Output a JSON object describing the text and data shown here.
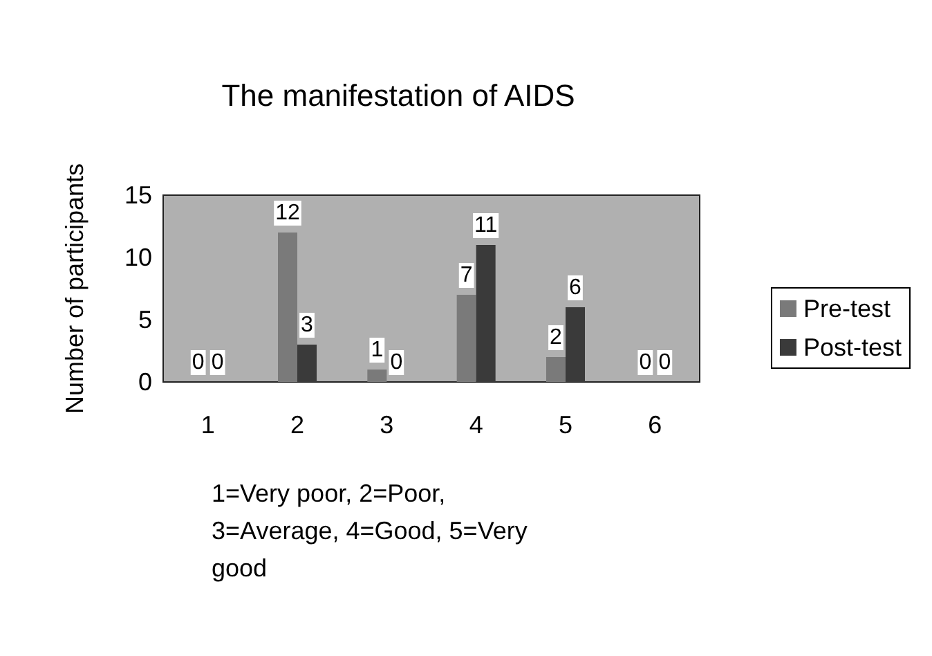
{
  "chart_data": {
    "type": "bar",
    "title": "The manifestation of AIDS",
    "xlabel": "1=Very poor, 2=Poor, 3=Average, 4=Good, 5=Very good",
    "ylabel": "Number of participants",
    "categories": [
      "1",
      "2",
      "3",
      "4",
      "5",
      "6"
    ],
    "series": [
      {
        "name": "Pre-test",
        "color": "#7a7a7a",
        "values": [
          0,
          12,
          1,
          7,
          2,
          0
        ]
      },
      {
        "name": "Post-test",
        "color": "#3a3a3a",
        "values": [
          0,
          3,
          0,
          11,
          6,
          0
        ]
      }
    ],
    "ylim": [
      0,
      15
    ],
    "yticks": [
      0,
      5,
      10,
      15
    ],
    "grid": false,
    "legend": "right",
    "data_labels": true
  }
}
